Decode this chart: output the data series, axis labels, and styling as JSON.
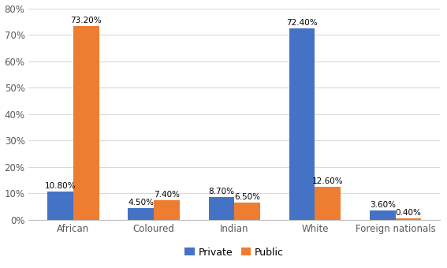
{
  "categories": [
    "African",
    "Coloured",
    "Indian",
    "White",
    "Foreign nationals"
  ],
  "private": [
    10.8,
    4.5,
    8.7,
    72.4,
    3.6
  ],
  "public": [
    73.2,
    7.4,
    6.5,
    12.6,
    0.4
  ],
  "private_color": "#4472C4",
  "public_color": "#ED7D31",
  "bar_width": 0.32,
  "ylim": [
    0,
    80
  ],
  "yticks": [
    0,
    10,
    20,
    30,
    40,
    50,
    60,
    70,
    80
  ],
  "ytick_labels": [
    "0%",
    "10%",
    "20%",
    "30%",
    "40%",
    "50%",
    "60%",
    "70%",
    "80%"
  ],
  "legend_labels": [
    "Private",
    "Public"
  ],
  "bg_color": "#FFFFFF",
  "grid_color": "#D9D9D9",
  "label_fontsize": 7.5,
  "tick_fontsize": 8.5,
  "legend_fontsize": 9
}
